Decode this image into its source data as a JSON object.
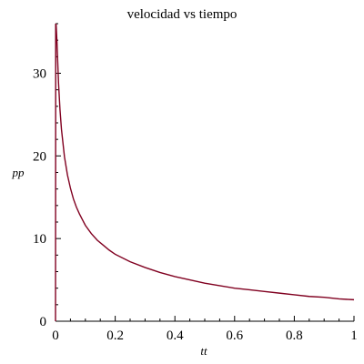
{
  "chart_data": {
    "type": "line",
    "title": "velocidad vs tiempo",
    "xlabel": "tt",
    "ylabel": "pp",
    "xlim": [
      0,
      1
    ],
    "ylim": [
      0,
      36
    ],
    "xticks": [
      0,
      0.2,
      0.4,
      0.6,
      0.8,
      1
    ],
    "xtick_labels": [
      "0",
      "0.2",
      "0.4",
      "0.6",
      "0.8",
      "1"
    ],
    "yticks": [
      0,
      10,
      20,
      30
    ],
    "ytick_labels": [
      "0",
      "10",
      "20",
      "30"
    ],
    "grid": false,
    "legend": "none",
    "series": [
      {
        "color": "#800020",
        "x": [
          0,
          0.0008,
          0.002,
          0.005,
          0.01,
          0.015,
          0.02,
          0.03,
          0.04,
          0.05,
          0.06,
          0.07,
          0.08,
          0.09,
          0.1,
          0.12,
          0.14,
          0.16,
          0.18,
          0.2,
          0.25,
          0.3,
          0.35,
          0.4,
          0.45,
          0.5,
          0.55,
          0.6,
          0.65,
          0.7,
          0.75,
          0.8,
          0.85,
          0.9,
          0.95,
          1.0
        ],
        "y": [
          0,
          36,
          35.9,
          33.7,
          28.9,
          25.6,
          23.2,
          19.9,
          17.7,
          16.1,
          14.8,
          13.8,
          13.0,
          12.3,
          11.6,
          10.6,
          9.8,
          9.2,
          8.6,
          8.1,
          7.2,
          6.5,
          5.9,
          5.4,
          5.0,
          4.6,
          4.3,
          4.0,
          3.8,
          3.6,
          3.4,
          3.2,
          3.0,
          2.9,
          2.7,
          2.6
        ]
      }
    ]
  }
}
